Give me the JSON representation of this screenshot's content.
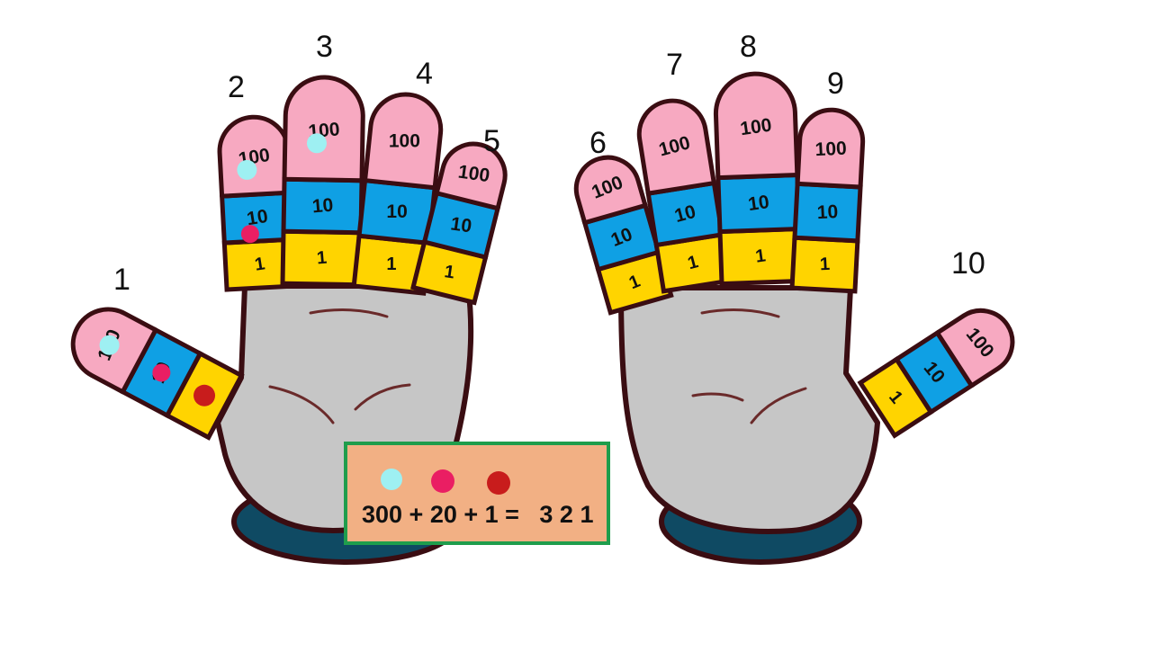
{
  "colors": {
    "hundreds": "#f7a9c1",
    "tens": "#0fa0e4",
    "ones": "#ffd400",
    "palm": "#c6c6c6",
    "outline": "#3a0d12",
    "cuff": "#0f4a63",
    "bead_hundreds": "#9ef0f2",
    "bead_tens": "#ea1e63",
    "bead_ones": "#c81c1c",
    "box_fill": "#f2b084",
    "box_border": "#1f9d4c"
  },
  "segment_labels": {
    "hundreds": "100",
    "tens": "10",
    "ones": "1"
  },
  "finger_numbers": [
    "1",
    "2",
    "3",
    "4",
    "5",
    "6",
    "7",
    "8",
    "9",
    "10"
  ],
  "beads": [
    {
      "finger": "1",
      "place": "hundreds"
    },
    {
      "finger": "1",
      "place": "tens"
    },
    {
      "finger": "1",
      "place": "ones"
    },
    {
      "finger": "2",
      "place": "hundreds"
    },
    {
      "finger": "2",
      "place": "tens"
    },
    {
      "finger": "3",
      "place": "hundreds"
    }
  ],
  "equation": {
    "text": "300 + 20 + 1 =   3 2 1",
    "legend_dots": [
      "hundreds",
      "tens",
      "ones"
    ]
  }
}
